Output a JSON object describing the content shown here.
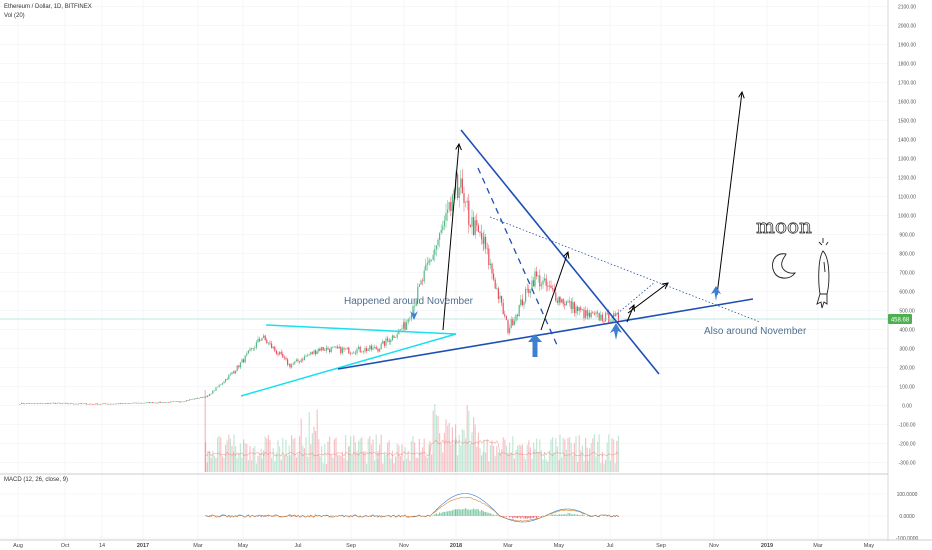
{
  "header": {
    "symbol_title": "Ethereum / Dollar, 1D, BITFINEX",
    "vol_label": "Vol (20)",
    "macd_label": "MACD (12, 26, close, 9)"
  },
  "colors": {
    "up": "#53b987",
    "down": "#eb4d5c",
    "trend_blue": "#1e50b4",
    "cyan": "#18e0f0",
    "arrow_blue": "#3d7fd0",
    "annot": "#4f6f90",
    "grid": "#eef0f3",
    "price_tag": "#4caf50"
  },
  "price_axis": {
    "ticks": [
      "2100.00",
      "2000.00",
      "1900.00",
      "1800.00",
      "1700.00",
      "1600.00",
      "1500.00",
      "1400.00",
      "1300.00",
      "1200.00",
      "1100.00",
      "1000.00",
      "900.00",
      "800.00",
      "700.00",
      "600.00",
      "500.00",
      "400.00",
      "300.00",
      "200.00",
      "100.00",
      "0.00",
      "-100.00",
      "-200.00",
      "-300.00"
    ],
    "current_price_label": "458.68"
  },
  "macd_axis": {
    "ticks": [
      "100.0000",
      "0.0000",
      "-100.0000"
    ]
  },
  "time_axis": {
    "labels": [
      "Aug",
      "Oct",
      "14",
      "2017",
      "Mar",
      "May",
      "Jul",
      "Sep",
      "Nov",
      "2018",
      "Mar",
      "May",
      "Jul",
      "Sep",
      "Nov",
      "2019",
      "Mar",
      "May"
    ]
  },
  "annotations": {
    "left_note": "Happened around November",
    "right_note": "Also around November",
    "moon_text": "moon"
  },
  "chart_data": {
    "type": "candlestick",
    "title": "Ethereum / Dollar, 1D, BITFINEX",
    "x": [
      "2016-08",
      "2016-10",
      "2016-12",
      "2017-01",
      "2017-03",
      "2017-04",
      "2017-05",
      "2017-06",
      "2017-07",
      "2017-08",
      "2017-09",
      "2017-10",
      "2017-11",
      "2017-12",
      "2018-01",
      "2018-02",
      "2018-03",
      "2018-04",
      "2018-05",
      "2018-06",
      "2018-07"
    ],
    "close": [
      11,
      12,
      8,
      10,
      20,
      50,
      180,
      360,
      210,
      300,
      290,
      300,
      420,
      760,
      1100,
      850,
      400,
      680,
      560,
      470,
      458
    ],
    "ylim": [
      -300,
      2100
    ],
    "current_price": 458.68,
    "volume_indicator": "Vol (20)",
    "macd": {
      "params": "MACD (12, 26, close, 9)",
      "approx_peak": 150,
      "ylim": [
        -100,
        100
      ]
    }
  }
}
